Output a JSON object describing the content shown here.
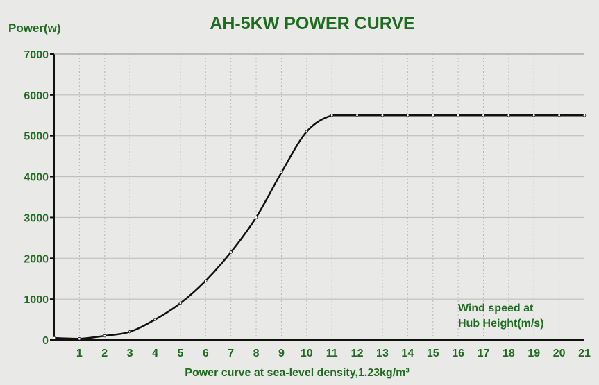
{
  "chart_data": {
    "type": "line",
    "title": "AH-5KW POWER CURVE",
    "ylabel": "Power(w)",
    "xlabel": "Power curve at sea-level density,1.23kg/m³",
    "annotation": [
      "Wind speed at",
      "Hub Height(m/s)"
    ],
    "xlim": [
      0,
      21
    ],
    "ylim": [
      0,
      7000
    ],
    "x_ticks": [
      1,
      2,
      3,
      4,
      5,
      6,
      7,
      8,
      9,
      10,
      11,
      12,
      13,
      14,
      15,
      16,
      17,
      18,
      19,
      20,
      21
    ],
    "y_ticks": [
      0,
      1000,
      2000,
      3000,
      4000,
      5000,
      6000,
      7000
    ],
    "grid": true,
    "series": [
      {
        "x": [
          0,
          1,
          2,
          3,
          4,
          5,
          6,
          7,
          8,
          9,
          10,
          11,
          12,
          13,
          14,
          15,
          16,
          17,
          18,
          19,
          20,
          21
        ],
        "values": [
          50,
          30,
          100,
          200,
          500,
          900,
          1450,
          2150,
          3000,
          4100,
          5100,
          5500,
          5500,
          5500,
          5500,
          5500,
          5500,
          5500,
          5500,
          5500,
          5500,
          5500
        ]
      }
    ],
    "colors": {
      "text": "#1f6b1f",
      "line": "#111111",
      "grid": "#b9b9b9",
      "axis": "#111111",
      "background": "#e9e9e7"
    }
  }
}
